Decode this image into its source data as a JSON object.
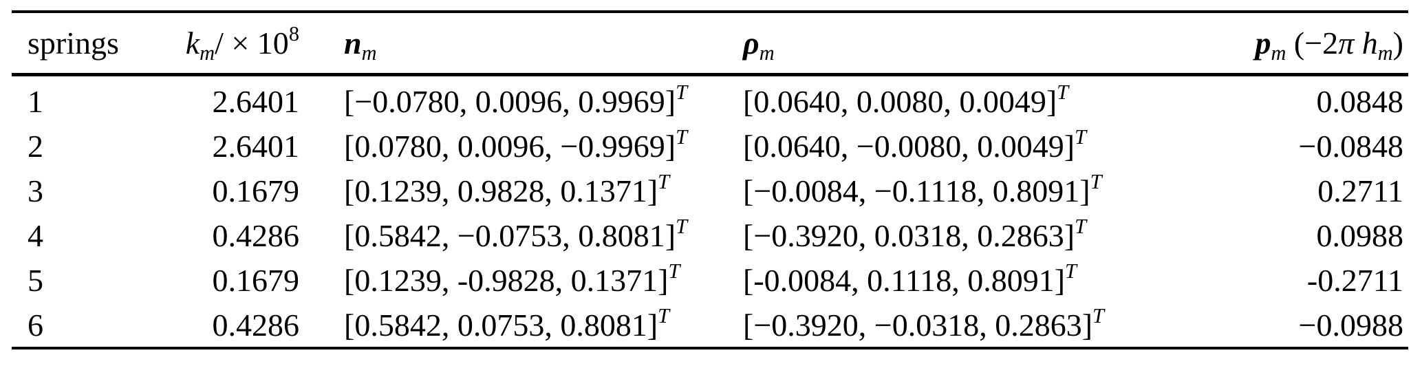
{
  "page": {
    "background": "#ffffff",
    "text_color": "#000000",
    "rule_color": "#000000"
  },
  "table": {
    "transpose": "T",
    "headers": {
      "springs": "springs",
      "k": {
        "base": "k",
        "sub": "m",
        "slash_times": "/ × 10",
        "sup": "8"
      },
      "n": {
        "base": "n",
        "sub": "m"
      },
      "rho": {
        "base": "ρ",
        "sub": "m"
      },
      "p": {
        "base": "p",
        "sub": "m",
        "paren_open": " (−2",
        "pi": "π",
        "h": " h",
        "hsub": "m",
        "paren_close": ")"
      }
    },
    "rows": [
      {
        "springs": "1",
        "k": "2.6401",
        "n": "[−0.0780, 0.0096, 0.9969]",
        "rho": "[0.0640, 0.0080, 0.0049]",
        "p": "0.0848"
      },
      {
        "springs": "2",
        "k": "2.6401",
        "n": "[0.0780, 0.0096, −0.9969]",
        "rho": "[0.0640, −0.0080, 0.0049]",
        "p": "−0.0848"
      },
      {
        "springs": "3",
        "k": "0.1679",
        "n": "[0.1239, 0.9828, 0.1371]",
        "rho": "[−0.0084, −0.1118, 0.8091]",
        "p": "0.2711"
      },
      {
        "springs": "4",
        "k": "0.4286",
        "n": "[0.5842, −0.0753, 0.8081]",
        "rho": "[−0.3920, 0.0318, 0.2863]",
        "p": "0.0988"
      },
      {
        "springs": "5",
        "k": "0.1679",
        "n": "[0.1239, -0.9828, 0.1371]",
        "rho": "[-0.0084, 0.1118, 0.8091]",
        "p": "-0.2711"
      },
      {
        "springs": "6",
        "k": "0.4286",
        "n": "[0.5842, 0.0753, 0.8081]",
        "rho": "[−0.3920, −0.0318, 0.2863]",
        "p": "−0.0988"
      }
    ]
  }
}
